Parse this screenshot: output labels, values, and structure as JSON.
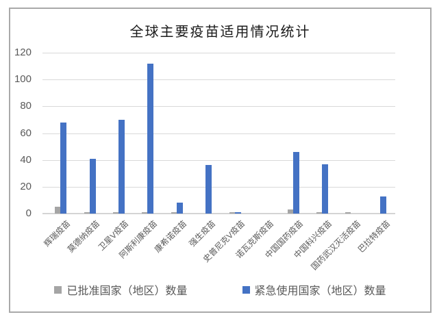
{
  "chart_data": {
    "type": "bar",
    "title": "全球主要疫苗适用情况统计",
    "categories": [
      "辉瑞疫苗",
      "莫德纳疫苗",
      "卫星V疫苗",
      "阿斯利康疫苗",
      "康希诺疫苗",
      "强生疫苗",
      "史普尼克V疫苗",
      "诺瓦克斯疫苗",
      "中国国药疫苗",
      "中国科兴疫苗",
      "国药武汉灭活疫苗",
      "巴拉特疫苗"
    ],
    "series": [
      {
        "name": "已批准国家（地区）数量",
        "color": "#a5a5a5",
        "values": [
          5,
          1,
          1,
          1,
          1,
          0,
          1,
          0,
          3,
          1,
          1,
          0
        ]
      },
      {
        "name": "紧急使用国家（地区）数量",
        "color": "#4472c4",
        "values": [
          68,
          41,
          70,
          112,
          8,
          36,
          1,
          0,
          46,
          37,
          0,
          13
        ]
      }
    ],
    "xlabel": "",
    "ylabel": "",
    "ylim": [
      0,
      120
    ],
    "yticks": [
      0,
      20,
      40,
      60,
      80,
      100,
      120
    ],
    "grid": true,
    "legend_position": "bottom",
    "colors": {
      "gridline": "#d9d9d9",
      "axis_line": "#d4d4d4",
      "tick_label": "#595959",
      "x_label": "#595959",
      "legend_text": "#595959",
      "title": "#1a1a1a",
      "frame_border": "#a9a9a9",
      "background": "#ffffff"
    }
  }
}
